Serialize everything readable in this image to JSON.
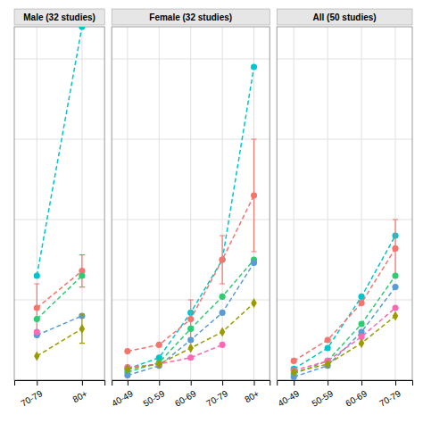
{
  "chart_data": [
    {
      "type": "line",
      "title": "Male (32 studies)",
      "categories": [
        "70-79",
        "80+"
      ],
      "series": [
        {
          "color": "#00C5CD",
          "marker": "circle",
          "values": [
            6.5,
            22.0
          ],
          "yerr": [
            null,
            null
          ]
        },
        {
          "color": "#F4746E",
          "marker": "circle",
          "values": [
            4.5,
            6.8
          ],
          "yerr": [
            1.5,
            1.0
          ]
        },
        {
          "color": "#2ECC71",
          "marker": "circle",
          "values": [
            3.8,
            6.5
          ],
          "yerr": [
            null,
            null
          ]
        },
        {
          "color": "#5B9BD5",
          "marker": "circle",
          "values": [
            2.8,
            4.0
          ],
          "yerr": [
            null,
            null
          ]
        },
        {
          "color": "#FF69B4",
          "marker": "circle",
          "values": [
            3.0,
            null
          ],
          "yerr": [
            null,
            null
          ]
        },
        {
          "color": "#9B9B00",
          "marker": "diamond",
          "values": [
            1.5,
            3.2
          ],
          "yerr": [
            null,
            0.9
          ]
        }
      ],
      "ylim": [
        0,
        22
      ],
      "yticks": [
        0,
        5,
        10,
        15,
        20
      ],
      "grid": true,
      "tick_labels": "x",
      "line_style": "dashed"
    },
    {
      "type": "line",
      "title": "Female (32 studies)",
      "categories": [
        "40-49",
        "50-59",
        "60-69",
        "70-79",
        "80+"
      ],
      "series": [
        {
          "color": "#00C5CD",
          "marker": "circle",
          "values": [
            0.7,
            1.4,
            4.2,
            7.5,
            19.5
          ],
          "yerr": [
            null,
            null,
            null,
            null,
            null
          ]
        },
        {
          "color": "#F4746E",
          "marker": "circle",
          "values": [
            1.8,
            2.2,
            3.8,
            7.5,
            11.5
          ],
          "yerr": [
            null,
            null,
            1.2,
            1.5,
            3.5
          ]
        },
        {
          "color": "#2ECC71",
          "marker": "circle",
          "values": [
            0.5,
            1.1,
            3.2,
            5.2,
            7.5
          ],
          "yerr": [
            null,
            null,
            null,
            null,
            null
          ]
        },
        {
          "color": "#5B9BD5",
          "marker": "circle",
          "values": [
            0.3,
            0.9,
            2.5,
            4.2,
            7.3
          ],
          "yerr": [
            null,
            null,
            null,
            null,
            null
          ]
        },
        {
          "color": "#FF69B4",
          "marker": "circle",
          "values": [
            0.8,
            1.0,
            1.4,
            2.2,
            null
          ],
          "yerr": [
            null,
            null,
            null,
            null,
            null
          ]
        },
        {
          "color": "#9B9B00",
          "marker": "diamond",
          "values": [
            0.7,
            1.0,
            2.0,
            3.0,
            4.8
          ],
          "yerr": [
            null,
            null,
            null,
            null,
            null
          ]
        }
      ],
      "ylim": [
        0,
        22
      ],
      "yticks": [
        0,
        5,
        10,
        15,
        20
      ],
      "grid": true,
      "tick_labels": "x",
      "line_style": "dashed"
    },
    {
      "type": "line",
      "title": "All (50 studies)",
      "categories": [
        "40-49",
        "50-59",
        "60-69",
        "70-79"
      ],
      "series": [
        {
          "color": "#00C5CD",
          "marker": "circle",
          "values": [
            0.7,
            2.0,
            5.2,
            9.0
          ],
          "yerr": [
            null,
            null,
            null,
            null
          ]
        },
        {
          "color": "#F4746E",
          "marker": "circle",
          "values": [
            1.2,
            2.5,
            4.8,
            8.2
          ],
          "yerr": [
            null,
            null,
            null,
            1.8
          ]
        },
        {
          "color": "#2ECC71",
          "marker": "circle",
          "values": [
            0.4,
            1.2,
            3.5,
            6.5
          ],
          "yerr": [
            null,
            null,
            null,
            null
          ]
        },
        {
          "color": "#5B9BD5",
          "marker": "circle",
          "values": [
            0.2,
            0.9,
            3.0,
            5.8
          ],
          "yerr": [
            null,
            null,
            null,
            null
          ]
        },
        {
          "color": "#FF69B4",
          "marker": "circle",
          "values": [
            0.6,
            1.2,
            2.7,
            4.5
          ],
          "yerr": [
            null,
            null,
            null,
            null
          ]
        },
        {
          "color": "#9B9B00",
          "marker": "diamond",
          "values": [
            0.5,
            1.0,
            2.3,
            4.0
          ],
          "yerr": [
            null,
            null,
            null,
            null
          ]
        }
      ],
      "ylim": [
        0,
        22
      ],
      "yticks": [
        0,
        5,
        10,
        15,
        20
      ],
      "grid": true,
      "tick_labels": "x",
      "line_style": "dashed"
    }
  ]
}
